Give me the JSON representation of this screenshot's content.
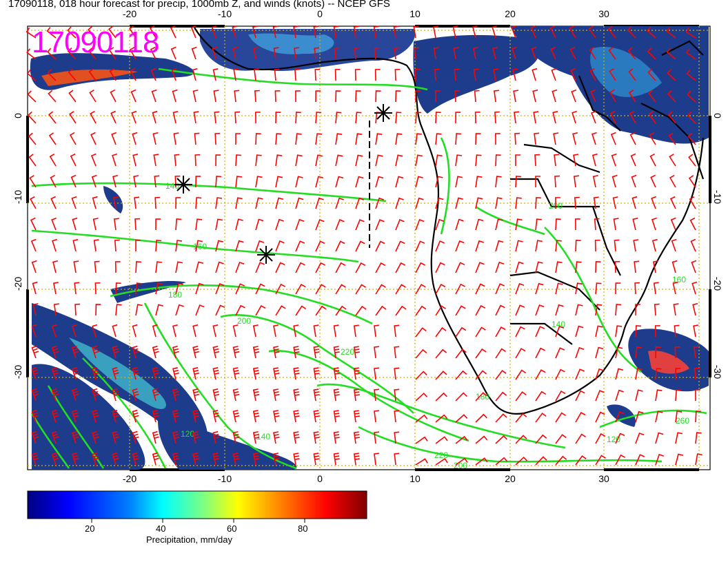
{
  "title": "17090118, 018 hour forecast for precip, 1000mb Z, and winds (knots) -- NCEP GFS",
  "stamp": "17090118",
  "axes": {
    "lon_ticks": [
      "-20",
      "-10",
      "0",
      "10",
      "20",
      "30"
    ],
    "lat_ticks": [
      "0",
      "-10",
      "-20",
      "-30"
    ]
  },
  "colorbar": {
    "title": "Precipitation, mm/day",
    "tick_labels": [
      "20",
      "40",
      "60",
      "80"
    ],
    "colors": [
      "#00007f",
      "#0000ff",
      "#007fff",
      "#00ffff",
      "#7fff7f",
      "#ffff00",
      "#ff7f00",
      "#ff0000",
      "#7f0000"
    ]
  },
  "contour_labels": [
    "140",
    "160",
    "180",
    "200",
    "220",
    "120",
    "140",
    "220",
    "200",
    "160",
    "140",
    "260",
    "120",
    "180",
    "200"
  ],
  "colors": {
    "contour": "#22dd22",
    "wind_barb": "#ff0000",
    "coast": "#000000",
    "grid": "#d4b000",
    "stamp": "#ff00ff"
  }
}
